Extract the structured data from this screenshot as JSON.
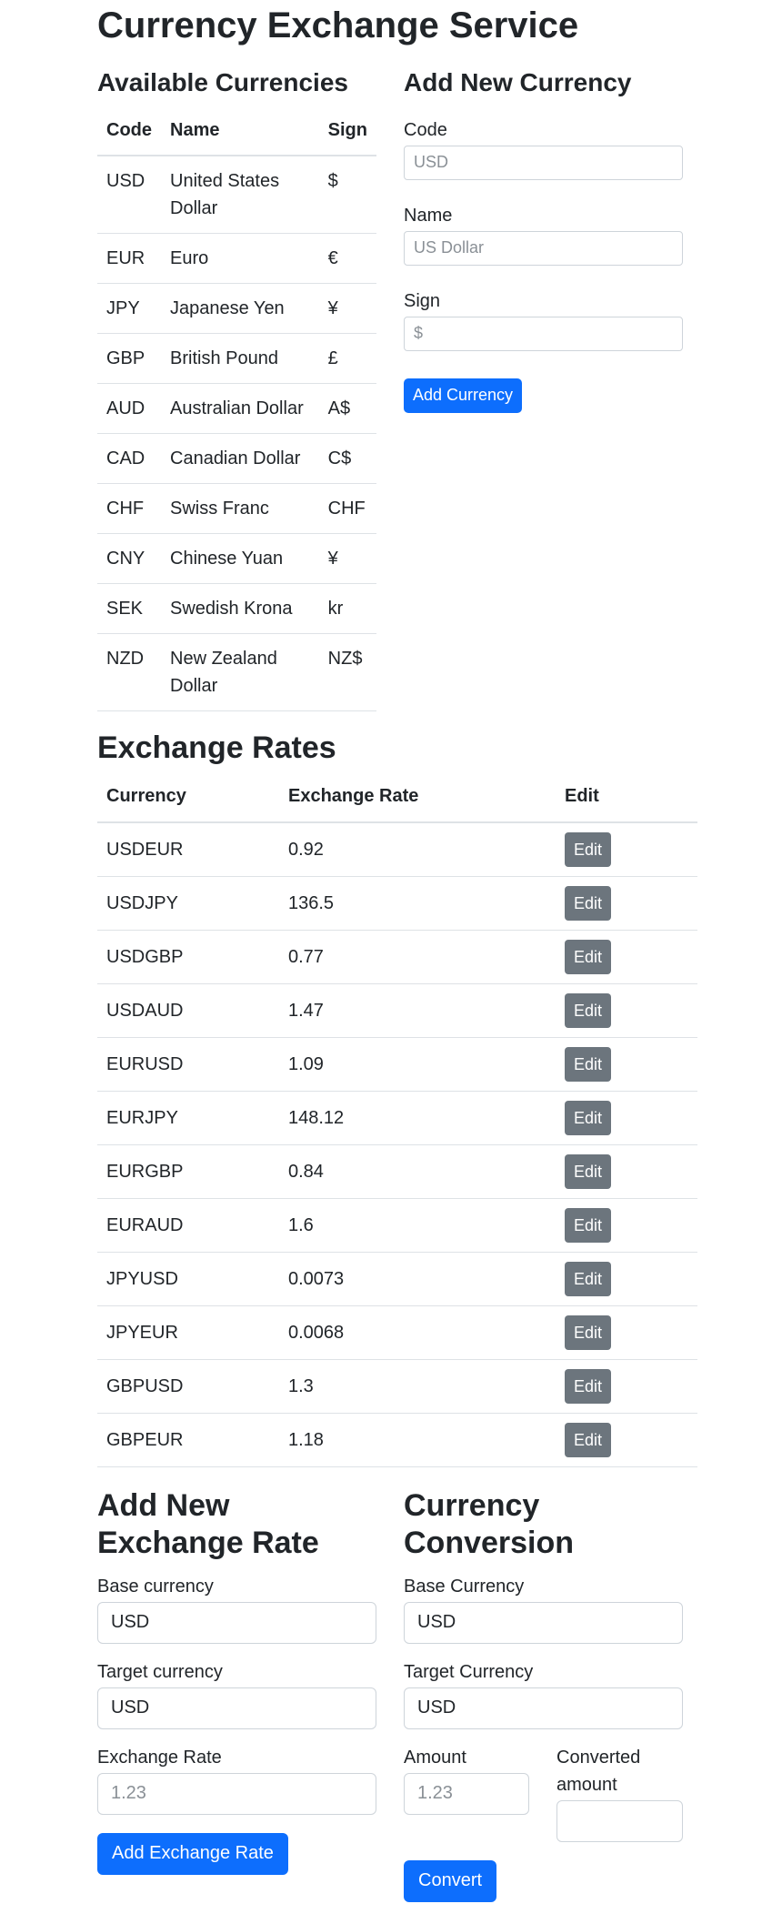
{
  "page_title": "Currency Exchange Service",
  "available": {
    "heading": "Available Currencies",
    "columns": [
      "Code",
      "Name",
      "Sign"
    ],
    "rows": [
      {
        "code": "USD",
        "name": "United States Dollar",
        "sign": "$"
      },
      {
        "code": "EUR",
        "name": "Euro",
        "sign": "€"
      },
      {
        "code": "JPY",
        "name": "Japanese Yen",
        "sign": "¥"
      },
      {
        "code": "GBP",
        "name": "British Pound",
        "sign": "£"
      },
      {
        "code": "AUD",
        "name": "Australian Dollar",
        "sign": "A$"
      },
      {
        "code": "CAD",
        "name": "Canadian Dollar",
        "sign": "C$"
      },
      {
        "code": "CHF",
        "name": "Swiss Franc",
        "sign": "CHF"
      },
      {
        "code": "CNY",
        "name": "Chinese Yuan",
        "sign": "¥"
      },
      {
        "code": "SEK",
        "name": "Swedish Krona",
        "sign": "kr"
      },
      {
        "code": "NZD",
        "name": "New Zealand Dollar",
        "sign": "NZ$"
      }
    ]
  },
  "add_currency": {
    "heading": "Add New Currency",
    "code_label": "Code",
    "code_placeholder": "USD",
    "name_label": "Name",
    "name_placeholder": "US Dollar",
    "sign_label": "Sign",
    "sign_placeholder": "$",
    "button": "Add Currency"
  },
  "rates": {
    "heading": "Exchange Rates",
    "columns": [
      "Currency",
      "Exchange Rate",
      "Edit"
    ],
    "edit_label": "Edit",
    "rows": [
      {
        "pair": "USDEUR",
        "rate": "0.92"
      },
      {
        "pair": "USDJPY",
        "rate": "136.5"
      },
      {
        "pair": "USDGBP",
        "rate": "0.77"
      },
      {
        "pair": "USDAUD",
        "rate": "1.47"
      },
      {
        "pair": "EURUSD",
        "rate": "1.09"
      },
      {
        "pair": "EURJPY",
        "rate": "148.12"
      },
      {
        "pair": "EURGBP",
        "rate": "0.84"
      },
      {
        "pair": "EURAUD",
        "rate": "1.6"
      },
      {
        "pair": "JPYUSD",
        "rate": "0.0073"
      },
      {
        "pair": "JPYEUR",
        "rate": "0.0068"
      },
      {
        "pair": "GBPUSD",
        "rate": "1.3"
      },
      {
        "pair": "GBPEUR",
        "rate": "1.18"
      }
    ]
  },
  "add_rate": {
    "heading": "Add New Exchange Rate",
    "base_label": "Base currency",
    "base_value": "USD",
    "target_label": "Target currency",
    "target_value": "USD",
    "rate_label": "Exchange Rate",
    "rate_placeholder": "1.23",
    "button": "Add Exchange Rate"
  },
  "conversion": {
    "heading": "Currency Conversion",
    "base_label": "Base Currency",
    "base_value": "USD",
    "target_label": "Target Currency",
    "target_value": "USD",
    "amount_label": "Amount",
    "amount_placeholder": "1.23",
    "converted_label": "Converted amount",
    "converted_value": "",
    "button": "Convert"
  }
}
